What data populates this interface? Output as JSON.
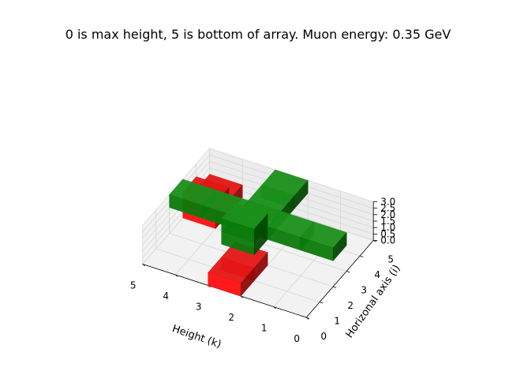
{
  "chart_data": {
    "type": "3d-voxel",
    "title": "0 is max height, 5 is bottom of array. Muon energy: 0.35 GeV",
    "xlabel": "Height (k)",
    "ylabel": "Horizonal axis (i)",
    "zlabel": "",
    "xlim": [
      0,
      5
    ],
    "ylim": [
      0,
      5
    ],
    "zlim": [
      0,
      3
    ],
    "x_ticks": [
      "0",
      "1",
      "2",
      "3",
      "4",
      "5"
    ],
    "y_ticks": [
      "0",
      "1",
      "2",
      "3",
      "4",
      "5"
    ],
    "z_ticks": [
      "0.0",
      "0.5",
      "1.0",
      "1.5",
      "2.0",
      "2.5",
      "3.0"
    ],
    "grid": true,
    "colors": {
      "green": "#008000",
      "red": "#ff0000"
    },
    "voxels": [
      {
        "x": 2,
        "y": 0,
        "z": 0,
        "color": "red"
      },
      {
        "x": 2,
        "y": 1,
        "z": 0,
        "color": "red"
      },
      {
        "x": 4,
        "y": 3,
        "z": 0,
        "color": "red"
      },
      {
        "x": 4,
        "y": 3,
        "z": 1,
        "color": "red"
      },
      {
        "x": 4,
        "y": 4,
        "z": 0,
        "color": "red"
      },
      {
        "x": 0,
        "y": 2,
        "z": 2,
        "color": "green"
      },
      {
        "x": 1,
        "y": 2,
        "z": 2,
        "color": "green"
      },
      {
        "x": 2,
        "y": 2,
        "z": 2,
        "color": "green"
      },
      {
        "x": 3,
        "y": 2,
        "z": 2,
        "color": "green"
      },
      {
        "x": 4,
        "y": 2,
        "z": 2,
        "color": "green"
      },
      {
        "x": 2,
        "y": 1,
        "z": 2,
        "color": "green"
      },
      {
        "x": 2,
        "y": 1,
        "z": 3,
        "color": "green"
      },
      {
        "x": 2,
        "y": 3,
        "z": 2,
        "color": "green"
      },
      {
        "x": 2,
        "y": 4,
        "z": 2,
        "color": "green"
      }
    ]
  }
}
